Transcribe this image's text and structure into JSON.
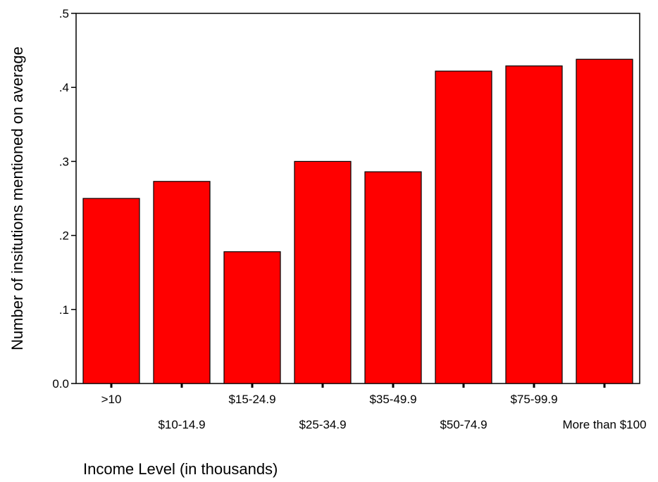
{
  "chart_data": {
    "type": "bar",
    "title": "",
    "xlabel": "Income Level (in thousands)",
    "ylabel": "Number of insitutions mentioned on average",
    "categories": [
      ">10",
      "$10-14.9",
      "$15-24.9",
      "$25-34.9",
      "$35-49.9",
      "$50-74.9",
      "$75-99.9",
      "More than $100"
    ],
    "values": [
      0.25,
      0.273,
      0.178,
      0.3,
      0.286,
      0.422,
      0.429,
      0.438
    ],
    "ylim": [
      0,
      0.5
    ],
    "y_ticks": [
      0,
      0.1,
      0.2,
      0.3,
      0.4,
      0.5
    ],
    "y_tick_labels": [
      "0.0",
      ".1",
      ".2",
      ".3",
      ".4",
      ".5"
    ],
    "bar_color": "#ff0000",
    "bar_edge_color": "#000000",
    "grid": false,
    "legend": false
  }
}
